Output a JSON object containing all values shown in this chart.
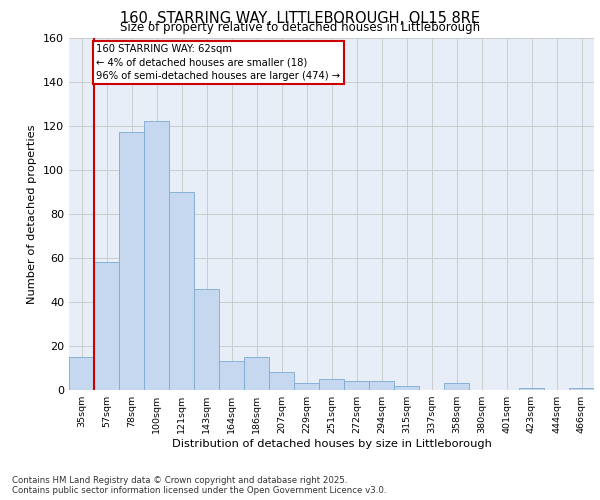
{
  "title": "160, STARRING WAY, LITTLEBOROUGH, OL15 8RE",
  "subtitle": "Size of property relative to detached houses in Littleborough",
  "xlabel": "Distribution of detached houses by size in Littleborough",
  "ylabel": "Number of detached properties",
  "categories": [
    "35sqm",
    "57sqm",
    "78sqm",
    "100sqm",
    "121sqm",
    "143sqm",
    "164sqm",
    "186sqm",
    "207sqm",
    "229sqm",
    "251sqm",
    "272sqm",
    "294sqm",
    "315sqm",
    "337sqm",
    "358sqm",
    "380sqm",
    "401sqm",
    "423sqm",
    "444sqm",
    "466sqm"
  ],
  "values": [
    15,
    58,
    117,
    122,
    90,
    46,
    13,
    15,
    8,
    3,
    5,
    4,
    4,
    2,
    0,
    3,
    0,
    0,
    1,
    0,
    1
  ],
  "bar_color": "#c5d8f0",
  "bar_edge_color": "#7aaad0",
  "annotation_text": "160 STARRING WAY: 62sqm\n← 4% of detached houses are smaller (18)\n96% of semi-detached houses are larger (474) →",
  "annotation_box_color": "#ffffff",
  "annotation_box_edge_color": "#cc0000",
  "vline_color": "#cc0000",
  "vline_x": 1.0,
  "ylim": [
    0,
    160
  ],
  "yticks": [
    0,
    20,
    40,
    60,
    80,
    100,
    120,
    140,
    160
  ],
  "grid_color": "#cccccc",
  "background_color": "#e8eef8",
  "footer_line1": "Contains HM Land Registry data © Crown copyright and database right 2025.",
  "footer_line2": "Contains public sector information licensed under the Open Government Licence v3.0."
}
